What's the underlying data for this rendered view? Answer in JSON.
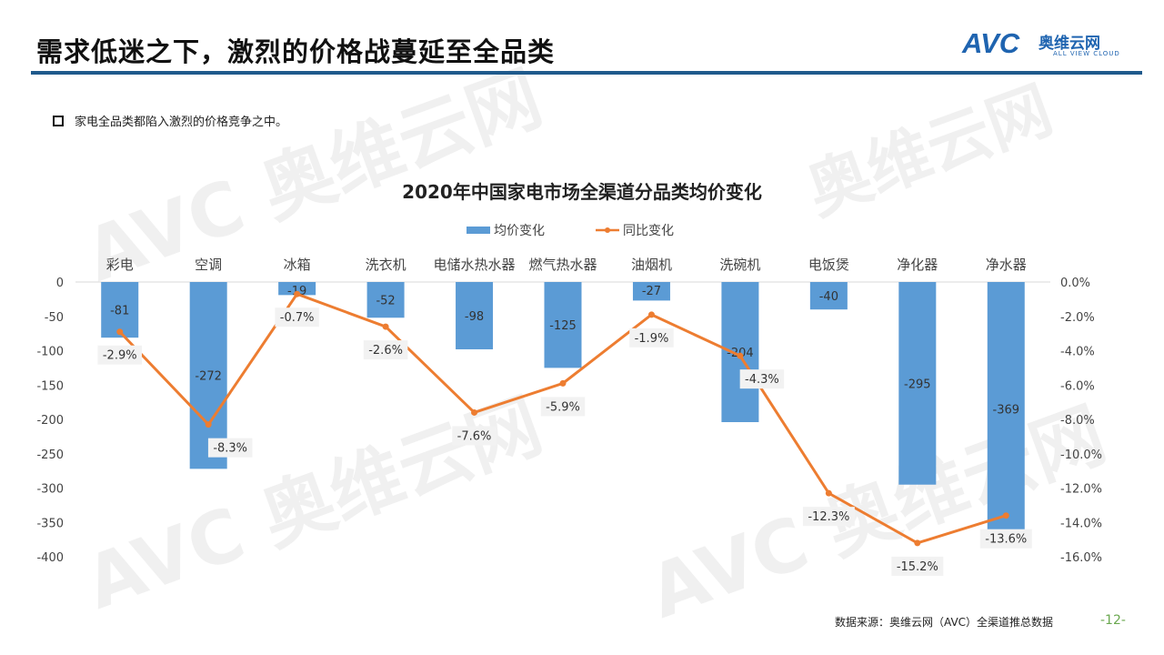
{
  "header": {
    "title": "需求低迷之下，激烈的价格战蔓延至全品类",
    "logo_text": "AVC",
    "logo_cn": "奥维云网",
    "logo_en": "ALL VIEW CLOUD"
  },
  "bullet": "家电全品类都陷入激烈的价格竞争之中。",
  "footer": {
    "source": "数据来源：奥维云网（AVC）全渠道推总数据",
    "page": "-12-"
  },
  "colors": {
    "bar": "#5b9bd5",
    "line": "#ed7d31",
    "rule": "#1f5a8c"
  },
  "chart_data": {
    "type": "bar+line",
    "title": "2020年中国家电市场全渠道分品类均价变化",
    "legend_position": "top",
    "categories": [
      "彩电",
      "空调",
      "冰箱",
      "洗衣机",
      "电储水热水器",
      "燃气热水器",
      "油烟机",
      "洗碗机",
      "电饭煲",
      "净化器",
      "净水器"
    ],
    "series": [
      {
        "name": "均价变化",
        "type": "bar",
        "axis": "left",
        "values": [
          -81,
          -272,
          -19,
          -52,
          -98,
          -125,
          -27,
          -204,
          -40,
          -295,
          -369
        ],
        "labels": [
          "-81",
          "-272",
          "-19",
          "-52",
          "-98",
          "-125",
          "-27",
          "-204",
          "-40",
          "-295",
          "-369"
        ]
      },
      {
        "name": "同比变化",
        "type": "line",
        "axis": "right",
        "values": [
          -2.9,
          -8.3,
          -0.7,
          -2.6,
          -7.6,
          -5.9,
          -1.9,
          -4.3,
          -12.3,
          -15.2,
          -13.6
        ],
        "labels": [
          "-2.9%",
          "-8.3%",
          "-0.7%",
          "-2.6%",
          "-7.6%",
          "-5.9%",
          "-1.9%",
          "-4.3%",
          "-12.3%",
          "-15.2%",
          "-13.6%"
        ]
      }
    ],
    "left_axis": {
      "ylim": [
        -400,
        0
      ],
      "ticks": [
        "0",
        "-50",
        "-100",
        "-150",
        "-200",
        "-250",
        "-300",
        "-350",
        "-400"
      ]
    },
    "right_axis": {
      "ylim": [
        -16,
        0
      ],
      "ticks": [
        "0.0%",
        "-2.0%",
        "-4.0%",
        "-6.0%",
        "-8.0%",
        "-10.0%",
        "-12.0%",
        "-14.0%",
        "-16.0%"
      ]
    }
  }
}
